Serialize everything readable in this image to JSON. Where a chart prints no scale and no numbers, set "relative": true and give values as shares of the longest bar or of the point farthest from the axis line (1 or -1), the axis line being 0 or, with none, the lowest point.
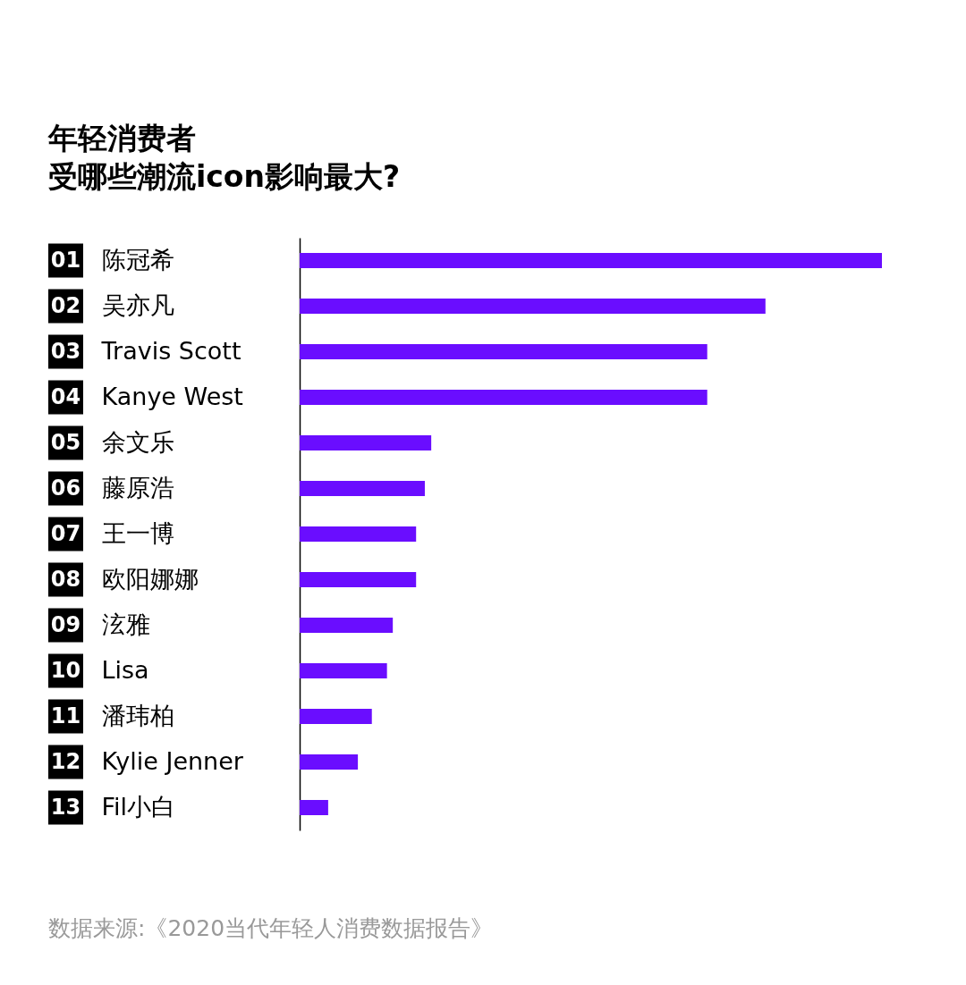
{
  "chart_data": {
    "type": "bar",
    "orientation": "horizontal",
    "relative": true,
    "title": "年轻消费者",
    "subtitle": "受哪些潮流icon影响最大?",
    "categories": [
      "陈冠希",
      "吴亦凡",
      "Travis Scott",
      "Kanye West",
      "余文乐",
      "藤原浩",
      "王一博",
      "欧阳娜娜",
      "泫雅",
      "Lisa",
      "潘玮柏",
      "Kylie Jenner",
      "Fil小白"
    ],
    "values": [
      1,
      0.8,
      0.7,
      0.7,
      0.226,
      0.215,
      0.2,
      0.2,
      0.16,
      0.15,
      0.124,
      0.1,
      0.049
    ],
    "color": "#6a0dff",
    "annotations": [
      "01",
      "02",
      "03",
      "04",
      "05",
      "06",
      "07",
      "08",
      "09",
      "10",
      "11",
      "12",
      "13",
      "数据来源:《2020当代年轻人消费数据报告》"
    ]
  }
}
